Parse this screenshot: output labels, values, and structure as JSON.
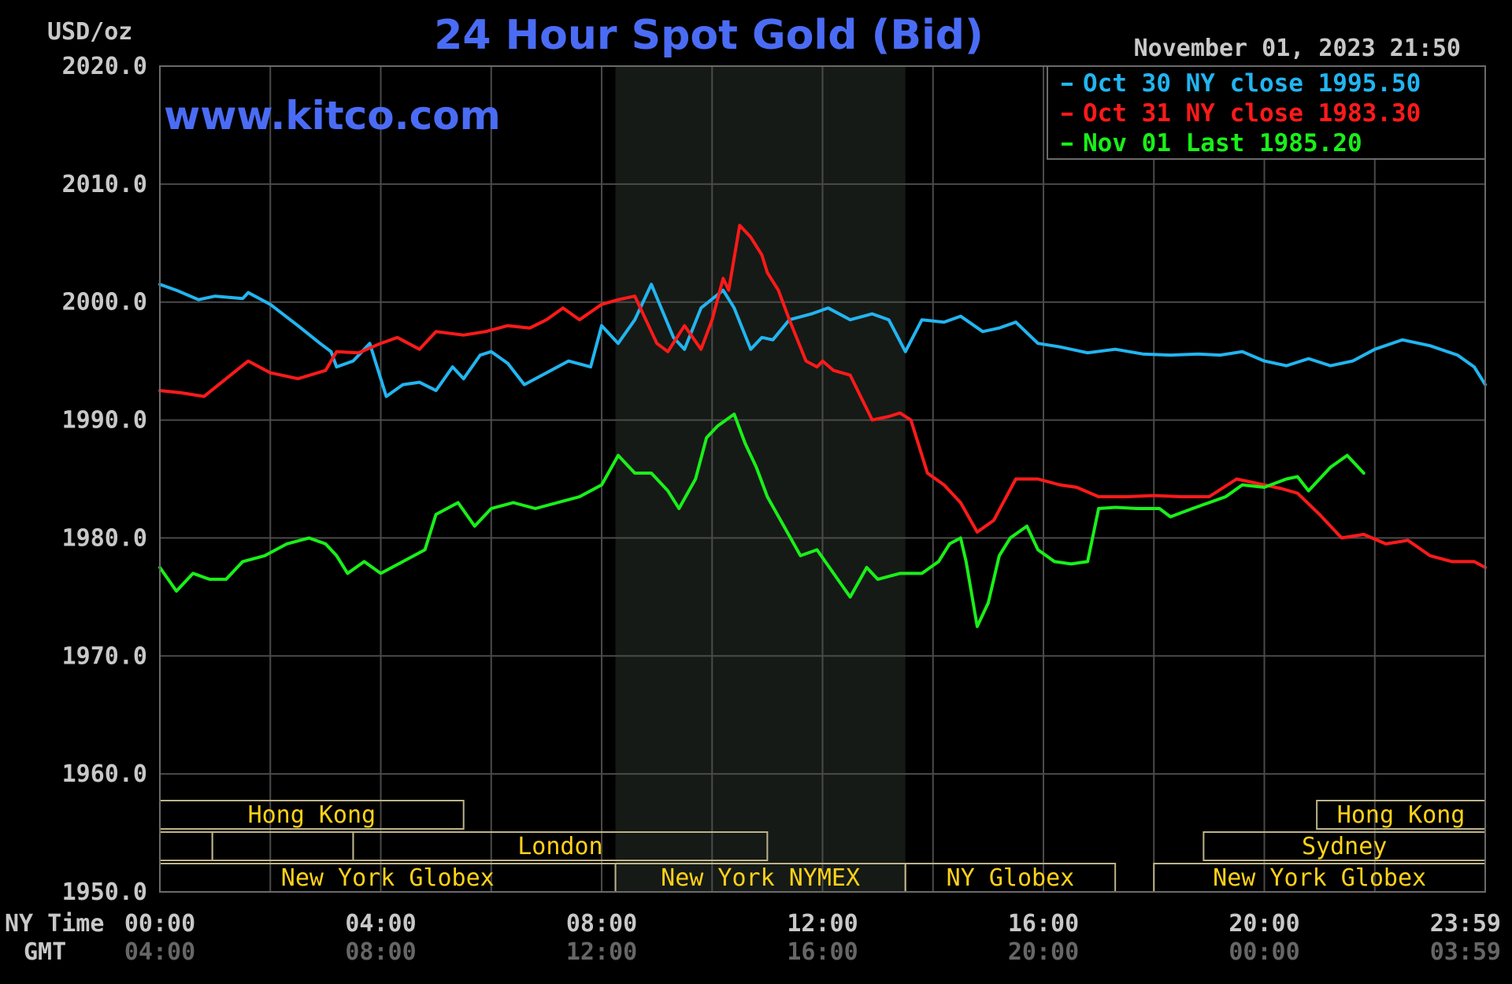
{
  "chart_data": {
    "type": "line",
    "title": "24 Hour Spot Gold (Bid)",
    "watermark": "www.kitco.com",
    "ylabel": "USD/oz",
    "timestamp": "November 01, 2023 21:50",
    "ylim": [
      1950.0,
      2020.0
    ],
    "yticks": [
      "2020.0",
      "2010.0",
      "2000.0",
      "1990.0",
      "1980.0",
      "1970.0",
      "1960.0",
      "1950.0"
    ],
    "x_unit": "hours (NY time)",
    "xlim": [
      0,
      24
    ],
    "row_labels": {
      "ny": "NY Time",
      "gmt": "GMT"
    },
    "xticks_ny": [
      "00:00",
      "04:00",
      "08:00",
      "12:00",
      "16:00",
      "20:00",
      "23:59"
    ],
    "xticks_gmt": [
      "04:00",
      "08:00",
      "12:00",
      "16:00",
      "20:00",
      "00:00",
      "03:59"
    ],
    "shaded_session_hours": [
      8.25,
      13.5
    ],
    "grid": true,
    "legend_position": "top-right",
    "series": [
      {
        "name": "Oct 30 NY close 1995.50",
        "color": "#22b5f0",
        "x": [
          0,
          0.3,
          0.7,
          1.0,
          1.5,
          1.6,
          2.0,
          2.5,
          2.9,
          3.1,
          3.2,
          3.5,
          3.8,
          4.1,
          4.4,
          4.7,
          5.0,
          5.3,
          5.5,
          5.8,
          6.0,
          6.3,
          6.6,
          7.0,
          7.4,
          7.8,
          8.0,
          8.3,
          8.6,
          8.9,
          9.3,
          9.5,
          9.8,
          10.2,
          10.4,
          10.7,
          10.9,
          11.1,
          11.4,
          11.8,
          12.1,
          12.5,
          12.9,
          13.2,
          13.5,
          13.8,
          14.2,
          14.5,
          14.9,
          15.2,
          15.5,
          15.9,
          16.3,
          16.8,
          17.3,
          17.8,
          18.3,
          18.8,
          19.2,
          19.6,
          20.0,
          20.4,
          20.8,
          21.2,
          21.6,
          22.0,
          22.5,
          23.0,
          23.5,
          23.8,
          24.0
        ],
        "y": [
          2001.5,
          2001.0,
          2000.2,
          2000.5,
          2000.3,
          2000.8,
          1999.8,
          1998.0,
          1996.5,
          1995.8,
          1994.5,
          1995.0,
          1996.5,
          1992.0,
          1993.0,
          1993.2,
          1992.5,
          1994.5,
          1993.5,
          1995.5,
          1995.8,
          1994.8,
          1993.0,
          1994.0,
          1995.0,
          1994.5,
          1998.0,
          1996.5,
          1998.5,
          2001.5,
          1997.0,
          1996.0,
          1999.5,
          2001.0,
          1999.5,
          1996.0,
          1997.0,
          1996.8,
          1998.5,
          1999.0,
          1999.5,
          1998.5,
          1999.0,
          1998.5,
          1995.8,
          1998.5,
          1998.3,
          1998.8,
          1997.5,
          1997.8,
          1998.3,
          1996.5,
          1996.2,
          1995.7,
          1996.0,
          1995.6,
          1995.5,
          1995.6,
          1995.5,
          1995.8,
          1995.0,
          1994.6,
          1995.2,
          1994.6,
          1995.0,
          1996.0,
          1996.8,
          1996.3,
          1995.5,
          1994.5,
          1993.0
        ]
      },
      {
        "name": "Oct 31 NY close 1983.30",
        "color": "#ff1a1a",
        "x": [
          0,
          0.4,
          0.8,
          1.2,
          1.6,
          2.0,
          2.5,
          3.0,
          3.2,
          3.6,
          4.0,
          4.3,
          4.7,
          5.0,
          5.5,
          5.9,
          6.3,
          6.7,
          7.0,
          7.3,
          7.6,
          8.0,
          8.3,
          8.6,
          8.8,
          9.0,
          9.2,
          9.5,
          9.8,
          10.0,
          10.2,
          10.3,
          10.5,
          10.7,
          10.9,
          11.0,
          11.2,
          11.4,
          11.7,
          11.9,
          12.0,
          12.2,
          12.5,
          12.9,
          13.2,
          13.4,
          13.6,
          13.9,
          14.2,
          14.5,
          14.8,
          15.1,
          15.5,
          15.9,
          16.3,
          16.6,
          17.0,
          17.5,
          18.0,
          18.5,
          19.0,
          19.5,
          20.0,
          20.3,
          20.6,
          21.0,
          21.4,
          21.8,
          22.2,
          22.6,
          23.0,
          23.4,
          23.8,
          24.0
        ],
        "y": [
          1992.5,
          1992.3,
          1992.0,
          1993.5,
          1995.0,
          1994.0,
          1993.5,
          1994.2,
          1995.8,
          1995.7,
          1996.5,
          1997.0,
          1996.0,
          1997.5,
          1997.2,
          1997.5,
          1998.0,
          1997.8,
          1998.5,
          1999.5,
          1998.5,
          1999.8,
          2000.2,
          2000.5,
          1998.5,
          1996.5,
          1995.8,
          1998.0,
          1996.0,
          1998.5,
          2002.0,
          2001.0,
          2006.5,
          2005.5,
          2004.0,
          2002.5,
          2001.0,
          1998.5,
          1995.0,
          1994.5,
          1995.0,
          1994.2,
          1993.8,
          1990.0,
          1990.3,
          1990.6,
          1990.0,
          1985.5,
          1984.5,
          1983.0,
          1980.5,
          1981.5,
          1985.0,
          1985.0,
          1984.5,
          1984.3,
          1983.5,
          1983.5,
          1983.6,
          1983.5,
          1983.5,
          1985.0,
          1984.5,
          1984.2,
          1983.8,
          1982.0,
          1980.0,
          1980.3,
          1979.5,
          1979.8,
          1978.5,
          1978.0,
          1978.0,
          1977.5
        ]
      },
      {
        "name": "Nov 01 Last 1985.20",
        "color": "#19f019",
        "x": [
          0,
          0.3,
          0.6,
          0.9,
          1.2,
          1.5,
          1.9,
          2.3,
          2.7,
          3.0,
          3.2,
          3.4,
          3.7,
          4.0,
          4.4,
          4.8,
          5.0,
          5.4,
          5.7,
          6.0,
          6.4,
          6.8,
          7.2,
          7.6,
          8.0,
          8.3,
          8.6,
          8.9,
          9.2,
          9.4,
          9.7,
          9.9,
          10.1,
          10.4,
          10.6,
          10.8,
          11.0,
          11.3,
          11.6,
          11.9,
          12.2,
          12.5,
          12.8,
          13.0,
          13.4,
          13.8,
          14.1,
          14.3,
          14.5,
          14.6,
          14.8,
          15.0,
          15.2,
          15.4,
          15.7,
          15.9,
          16.2,
          16.5,
          16.8,
          17.0,
          17.3,
          17.7,
          18.1,
          18.3,
          18.7,
          19.0,
          19.3,
          19.6,
          20.0,
          20.4,
          20.6,
          20.8,
          21.0,
          21.2,
          21.5,
          21.8
        ],
        "y": [
          1977.5,
          1975.5,
          1977.0,
          1976.5,
          1976.5,
          1978.0,
          1978.5,
          1979.5,
          1980.0,
          1979.5,
          1978.5,
          1977.0,
          1978.0,
          1977.0,
          1978.0,
          1979.0,
          1982.0,
          1983.0,
          1981.0,
          1982.5,
          1983.0,
          1982.5,
          1983.0,
          1983.5,
          1984.5,
          1987.0,
          1985.5,
          1985.5,
          1984.0,
          1982.5,
          1985.0,
          1988.5,
          1989.5,
          1990.5,
          1988.0,
          1986.0,
          1983.5,
          1981.0,
          1978.5,
          1979.0,
          1977.0,
          1975.0,
          1977.5,
          1976.5,
          1977.0,
          1977.0,
          1978.0,
          1979.5,
          1980.0,
          1978.0,
          1972.5,
          1974.5,
          1978.5,
          1980.0,
          1981.0,
          1979.0,
          1978.0,
          1977.8,
          1978.0,
          1982.5,
          1982.6,
          1982.5,
          1982.5,
          1981.8,
          1982.5,
          1983.0,
          1983.5,
          1984.5,
          1984.3,
          1985.0,
          1985.2,
          1984.0,
          1985.0,
          1986.0,
          1987.0,
          1985.5
        ]
      }
    ],
    "sessions": [
      {
        "label": "Hong Kong",
        "start": 0.0,
        "end": 5.5,
        "row": 0
      },
      {
        "label": "",
        "start": 0.0,
        "end": 0.95,
        "row": 1
      },
      {
        "label": "",
        "start": 0.95,
        "end": 3.5,
        "row": 1
      },
      {
        "label": "London",
        "start": 3.5,
        "end": 11.0,
        "row": 1
      },
      {
        "label": "New York Globex",
        "start": 0.0,
        "end": 8.25,
        "row": 2
      },
      {
        "label": "New York NYMEX",
        "start": 8.25,
        "end": 13.5,
        "row": 2
      },
      {
        "label": "NY Globex",
        "start": 13.5,
        "end": 17.3,
        "row": 2
      },
      {
        "label": "Hong Kong",
        "start": 20.95,
        "end": 24.0,
        "row": 0
      },
      {
        "label": "Sydney",
        "start": 18.9,
        "end": 24.0,
        "row": 1
      },
      {
        "label": "New York Globex",
        "start": 18.0,
        "end": 24.0,
        "row": 2
      }
    ]
  }
}
